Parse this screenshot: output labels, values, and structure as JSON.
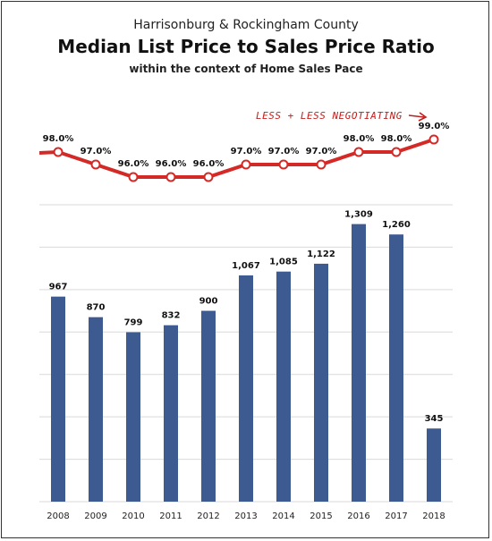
{
  "header": {
    "subtitle": "Harrisonburg & Rockingham County",
    "title": "Median List Price to Sales Price Ratio",
    "context": "within the context of Home Sales Pace"
  },
  "annotation": "LESS + LESS NEGOTIATING",
  "colors": {
    "bar": "#3d5a91",
    "line": "#d42a27",
    "grid": "#d9d9d9",
    "text": "#111111"
  },
  "chart_data": [
    {
      "type": "line",
      "x": [
        "2008",
        "2009",
        "2010",
        "2011",
        "2012",
        "2013",
        "2014",
        "2015",
        "2016",
        "2017",
        "2018"
      ],
      "values": [
        98.0,
        97.0,
        96.0,
        96.0,
        96.0,
        97.0,
        97.0,
        97.0,
        98.0,
        98.0,
        99.0
      ],
      "labels": [
        "98.0%",
        "97.0%",
        "96.0%",
        "96.0%",
        "96.0%",
        "97.0%",
        "97.0%",
        "97.0%",
        "98.0%",
        "98.0%",
        "99.0%"
      ]
    },
    {
      "type": "bar",
      "categories": [
        "2008",
        "2009",
        "2010",
        "2011",
        "2012",
        "2013",
        "2014",
        "2015",
        "2016",
        "2017",
        "2018"
      ],
      "values": [
        967,
        870,
        799,
        832,
        900,
        1067,
        1085,
        1122,
        1309,
        1260,
        345
      ],
      "labels": [
        "967",
        "870",
        "799",
        "832",
        "900",
        "1,067",
        "1,085",
        "1,122",
        "1,309",
        "1,260",
        "345"
      ],
      "ylim": [
        0,
        1400
      ],
      "grid": true
    }
  ]
}
